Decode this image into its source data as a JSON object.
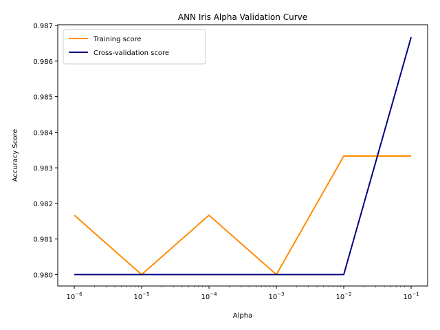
{
  "chart_data": {
    "type": "line",
    "title": "ANN Iris Alpha Validation Curve",
    "xlabel": "Alpha",
    "ylabel": "Accuracy Score",
    "xscale": "log",
    "x": [
      1e-06,
      1e-05,
      0.0001,
      0.001,
      0.01,
      0.1
    ],
    "x_tick_labels": [
      {
        "value": 1e-06,
        "base": "10",
        "exp": "−6"
      },
      {
        "value": 1e-05,
        "base": "10",
        "exp": "−5"
      },
      {
        "value": 0.0001,
        "base": "10",
        "exp": "−4"
      },
      {
        "value": 0.001,
        "base": "10",
        "exp": "−3"
      },
      {
        "value": 0.01,
        "base": "10",
        "exp": "−2"
      },
      {
        "value": 0.1,
        "base": "10",
        "exp": "−1"
      }
    ],
    "y_ticks": [
      0.98,
      0.981,
      0.982,
      0.983,
      0.984,
      0.985,
      0.986,
      0.987
    ],
    "y_tick_labels": [
      "0.980",
      "0.981",
      "0.982",
      "0.983",
      "0.984",
      "0.985",
      "0.986",
      "0.987"
    ],
    "ylim": [
      0.97968,
      0.98702
    ],
    "grid": false,
    "legend_position": "top-left",
    "series": [
      {
        "name": "Training score",
        "color": "#ff8c00",
        "values": [
          0.98167,
          0.98,
          0.98167,
          0.98,
          0.98333,
          0.98333
        ]
      },
      {
        "name": "Cross-validation score",
        "color": "#000080",
        "values": [
          0.98,
          0.98,
          0.98,
          0.98,
          0.98,
          0.98667
        ]
      }
    ]
  }
}
